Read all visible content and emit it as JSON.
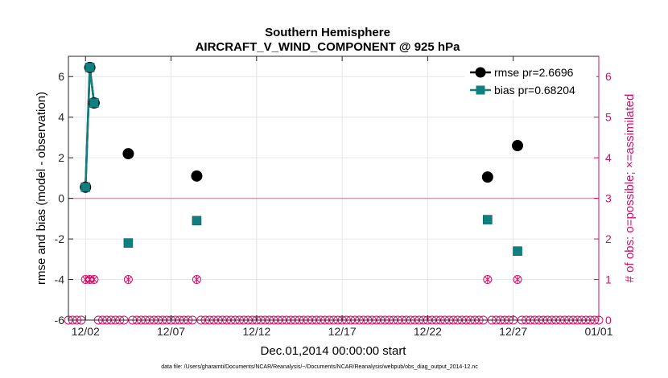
{
  "chart_data": {
    "type": "line",
    "title": [
      "Southern Hemisphere",
      "AIRCRAFT_V_WIND_COMPONENT @ 925 hPa"
    ],
    "xlabel": "Dec.01,2014 00:00:00 start",
    "ylabel_left": "rmse and bias (model - observation)",
    "ylabel_right": "# of obs: o=possible; ×=assimilated",
    "footnote": "data file: /Users/gharamti/Documents/NCAR/Reanalysis/~/Documents/NCAR/Reanalysis/webpub/obs_diag_output_2014-12.nc",
    "x_ticks": [
      {
        "value": 1,
        "label": "12/02"
      },
      {
        "value": 6,
        "label": "12/07"
      },
      {
        "value": 11,
        "label": "12/12"
      },
      {
        "value": 16,
        "label": "12/17"
      },
      {
        "value": 21,
        "label": "12/22"
      },
      {
        "value": 26,
        "label": "12/27"
      },
      {
        "value": 31,
        "label": "01/01"
      }
    ],
    "xlim": [
      0,
      31
    ],
    "ylim_left": [
      -6,
      7
    ],
    "yticks_left": [
      "-6",
      "-4",
      "-2",
      "0",
      "2",
      "4",
      "6"
    ],
    "ylim_right": [
      0,
      6.5
    ],
    "yticks_right": [
      "0",
      "1",
      "2",
      "3",
      "4",
      "5",
      "6"
    ],
    "grid": true,
    "legend_position": "top-right",
    "colors": {
      "rmse": "#000000",
      "bias": "#0f7f7f",
      "obs": "#d4106a",
      "zero_line": "#c8a0a8",
      "grid": "#e6e6e6"
    },
    "series": [
      {
        "name": "rmse pr=2.6696",
        "marker": "circle",
        "points": [
          [
            1.0,
            0.55
          ],
          [
            1.25,
            6.45
          ],
          [
            1.5,
            4.7
          ],
          [
            3.5,
            2.2
          ],
          [
            7.5,
            1.1
          ],
          [
            24.5,
            1.05
          ],
          [
            26.25,
            2.6
          ]
        ],
        "connected": [
          [
            0,
            1,
            2
          ]
        ]
      },
      {
        "name": "bias pr=0.68204",
        "marker": "square",
        "points": [
          [
            1.0,
            0.55
          ],
          [
            1.25,
            6.45
          ],
          [
            1.5,
            4.7
          ],
          [
            3.5,
            -2.2
          ],
          [
            7.5,
            -1.1
          ],
          [
            24.5,
            -1.05
          ],
          [
            26.25,
            -2.6
          ]
        ],
        "connected": [
          [
            0,
            1,
            2
          ]
        ]
      }
    ],
    "obs_counts": {
      "x_start": 0,
      "x_end": 31,
      "step": 0.25,
      "nonzero": [
        [
          1.0,
          1
        ],
        [
          1.25,
          1
        ],
        [
          1.5,
          1
        ],
        [
          3.5,
          1
        ],
        [
          7.5,
          1
        ],
        [
          24.5,
          1
        ],
        [
          26.25,
          1
        ]
      ]
    }
  }
}
